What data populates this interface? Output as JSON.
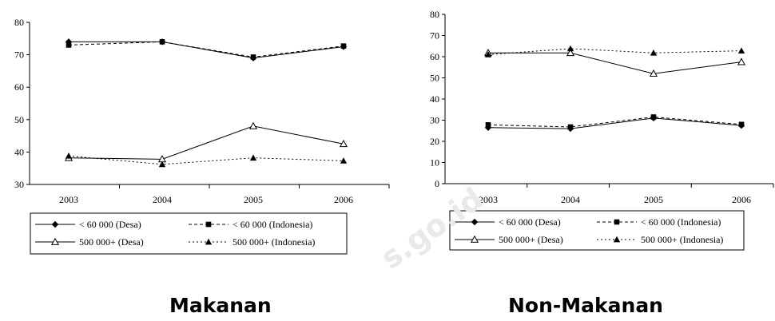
{
  "watermark": "s.go.id",
  "chart_data": [
    {
      "type": "line",
      "title": "Makanan",
      "xlabel": "",
      "ylabel": "",
      "categories": [
        "2003",
        "2004",
        "2005",
        "2006"
      ],
      "ylim": [
        30,
        80
      ],
      "yticks": [
        "30",
        "40",
        "50",
        "60",
        "70",
        "80"
      ],
      "grid": false,
      "legend_position": "bottom",
      "series": [
        {
          "name": "< 60 000 (Desa)",
          "values": [
            74,
            74,
            69,
            72.5
          ],
          "style": "solid",
          "marker": "diamond-filled"
        },
        {
          "name": "< 60 000 (Indonesia)",
          "values": [
            73,
            74,
            69.3,
            72.7
          ],
          "style": "dashed",
          "marker": "square-filled"
        },
        {
          "name": "500 000+ (Desa)",
          "values": [
            38.2,
            37.8,
            48,
            42.5
          ],
          "style": "solid",
          "marker": "triangle-open"
        },
        {
          "name": "500 000+ (Indonesia)",
          "values": [
            38.8,
            36.2,
            38.2,
            37.3
          ],
          "style": "dotted",
          "marker": "triangle-filled"
        }
      ]
    },
    {
      "type": "line",
      "title": "Non-Makanan",
      "xlabel": "",
      "ylabel": "",
      "categories": [
        "2003",
        "2004",
        "2005",
        "2006"
      ],
      "ylim": [
        0,
        80
      ],
      "yticks": [
        "0",
        "10",
        "20",
        "30",
        "40",
        "50",
        "60",
        "70",
        "80"
      ],
      "grid": false,
      "legend_position": "bottom",
      "series": [
        {
          "name": "< 60 000 (Desa)",
          "values": [
            26.5,
            26,
            31,
            27.5
          ],
          "style": "solid",
          "marker": "diamond-filled"
        },
        {
          "name": "< 60 000 (Indonesia)",
          "values": [
            27.8,
            26.8,
            31.5,
            28
          ],
          "style": "dashed",
          "marker": "square-filled"
        },
        {
          "name": "500 000+ (Desa)",
          "values": [
            61.8,
            61.8,
            52,
            57.5
          ],
          "style": "solid",
          "marker": "triangle-open"
        },
        {
          "name": "500 000+ (Indonesia)",
          "values": [
            61,
            63.8,
            61.8,
            62.8
          ],
          "style": "dotted",
          "marker": "triangle-filled"
        }
      ]
    }
  ]
}
